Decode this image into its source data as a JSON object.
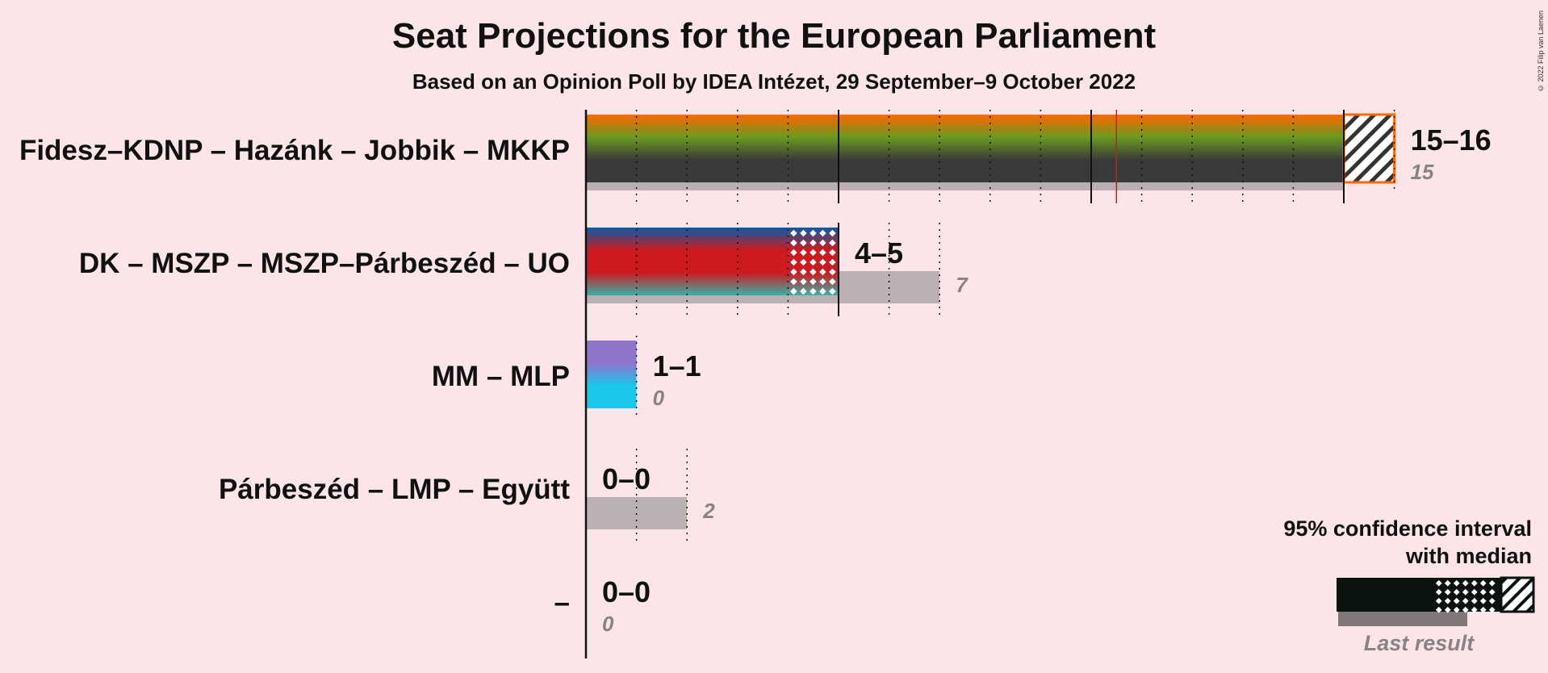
{
  "title": "Seat Projections for the European Parliament",
  "subtitle": "Based on an Opinion Poll by IDEA Intézet, 29 September–9 October 2022",
  "copyright": "© 2022 Filip van Laenen",
  "chart_data": {
    "type": "bar",
    "orientation": "horizontal",
    "title": "Seat Projections for the European Parliament",
    "subtitle": "Based on an Opinion Poll by IDEA Intézet, 29 September–9 October 2022",
    "xlim": [
      0,
      16
    ],
    "majority_line": 10.5,
    "major_gridlines": [
      0,
      5,
      10,
      15
    ],
    "grid": true,
    "categories": [
      "Fidesz–KDNP – Hazánk – Jobbik – MKKP",
      "DK – MSZP – MSZP–Párbeszéd – UO",
      "MM – MLP",
      "Párbeszéd – LMP – Együtt",
      "–"
    ],
    "series": [
      {
        "label": "Fidesz–KDNP – Hazánk – Jobbik – MKKP",
        "ci_low": 15,
        "median": 15,
        "ci_high": 16,
        "range_label": "15–16",
        "last_result": 15,
        "last_label": "15",
        "colors": [
          "#ff6600",
          "#6a9a1f",
          "#3a3a3a",
          "#3a3a3a"
        ]
      },
      {
        "label": "DK – MSZP – MSZP–Párbeszéd – UO",
        "ci_low": 4,
        "median": 5,
        "ci_high": 5,
        "range_label": "4–5",
        "last_result": 7,
        "last_label": "7",
        "colors": [
          "#0a5aa8",
          "#cc1a1f",
          "#cc1a1f",
          "#3ab0a8"
        ]
      },
      {
        "label": "MM – MLP",
        "ci_low": 1,
        "median": 1,
        "ci_high": 1,
        "range_label": "1–1",
        "last_result": 0,
        "last_label": "0",
        "colors": [
          "#8f74cc",
          "#8f74cc",
          "#1ac8ea",
          "#1ac8ea"
        ]
      },
      {
        "label": "Párbeszéd – LMP – Együtt",
        "ci_low": 0,
        "median": 0,
        "ci_high": 0,
        "range_label": "0–0",
        "last_result": 2,
        "last_label": "2",
        "colors": [
          "#999999"
        ]
      },
      {
        "label": "–",
        "ci_low": 0,
        "median": 0,
        "ci_high": 0,
        "range_label": "0–0",
        "last_result": 0,
        "last_label": "0",
        "colors": [
          "#999999"
        ]
      }
    ],
    "legend": {
      "position": "bottom-right",
      "title_line1": "95% confidence interval",
      "title_line2": "with median",
      "last_result_label": "Last result"
    }
  }
}
